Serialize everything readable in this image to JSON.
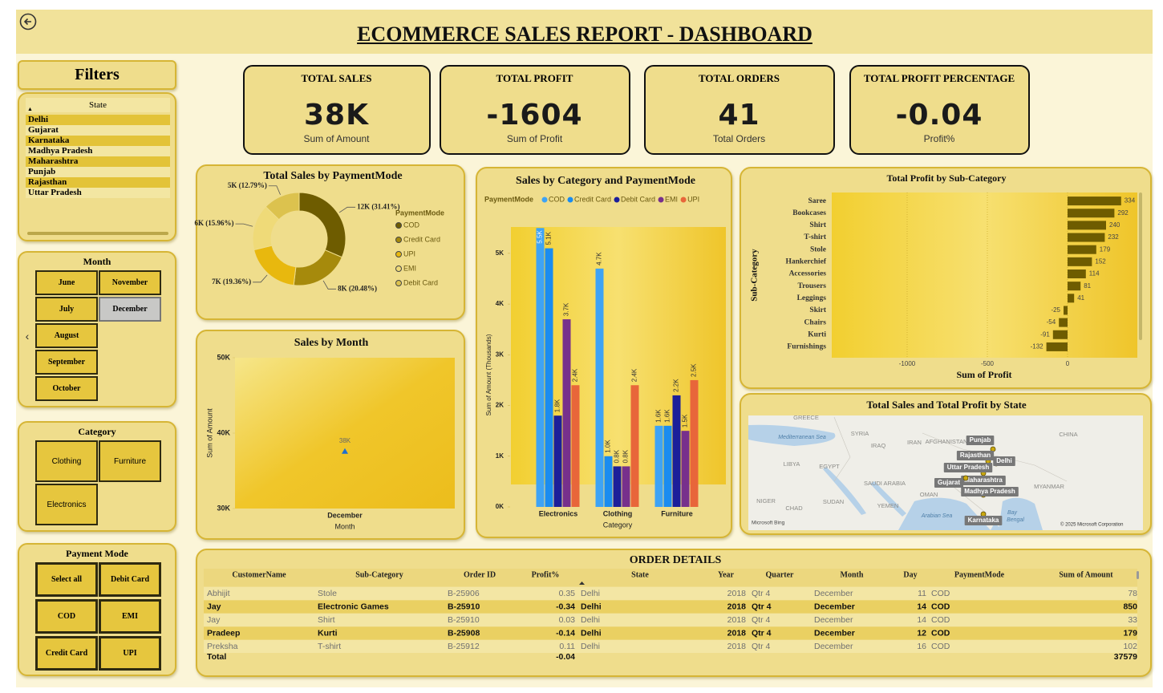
{
  "title": "ECOMMERCE SALES REPORT - DASHBOARD",
  "filters": {
    "title": "Filters",
    "state": {
      "label": "State",
      "items": [
        "Delhi",
        "Gujarat",
        "Karnataka",
        "Madhya Pradesh",
        "Maharashtra",
        "Punjab",
        "Rajasthan",
        "Uttar Pradesh"
      ]
    },
    "month": {
      "label": "Month",
      "items": [
        {
          "label": "June"
        },
        {
          "label": "November"
        },
        {
          "label": "July"
        },
        {
          "label": "December",
          "selected": true
        },
        {
          "label": "August"
        },
        {
          "label": "September"
        },
        {
          "label": "October"
        }
      ]
    },
    "category": {
      "label": "Category",
      "items": [
        "Clothing",
        "Furniture",
        "Electronics"
      ]
    },
    "payment_mode": {
      "label": "Payment Mode",
      "items": [
        "Select all",
        "Debit Card",
        "COD",
        "EMI",
        "Credit Card",
        "UPI"
      ]
    }
  },
  "kpis": [
    {
      "title": "TOTAL SALES",
      "value": "38K",
      "caption": "Sum of Amount"
    },
    {
      "title": "TOTAL PROFIT",
      "value": "-1604",
      "caption": "Sum of Profit"
    },
    {
      "title": "TOTAL ORDERS",
      "value": "41",
      "caption": "Total Orders"
    },
    {
      "title": "TOTAL PROFIT PERCENTAGE",
      "value": "-0.04",
      "caption": "Profit%"
    }
  ],
  "chart_data": [
    {
      "type": "donut",
      "title": "Total Sales by PaymentMode",
      "legend_title": "PaymentMode",
      "categories": [
        "COD",
        "Credit Card",
        "UPI",
        "EMI",
        "Debit Card"
      ],
      "values": [
        31.41,
        20.48,
        19.36,
        15.96,
        12.79
      ],
      "value_labels": [
        "12K (31.41%)",
        "8K (20.48%)",
        "7K (19.36%)",
        "6K (15.96%)",
        "5K (12.79%)"
      ],
      "colors": [
        "#6e5c00",
        "#a68a0c",
        "#e8b80e",
        "#efda78",
        "#dcc24e"
      ]
    },
    {
      "type": "line",
      "title": "Sales by Month",
      "x_label": "Month",
      "y_label": "Sum of Amount",
      "categories": [
        "December"
      ],
      "values": [
        37579
      ],
      "value_labels": [
        "38K"
      ],
      "color": "#1f6fd0",
      "ylim": [
        30000,
        50000
      ],
      "yticks": [
        {
          "value": 30000,
          "label": "30K"
        },
        {
          "value": 40000,
          "label": "40K"
        },
        {
          "value": 50000,
          "label": "50K"
        }
      ]
    },
    {
      "type": "bar",
      "title": "Sales by Category and PaymentMode",
      "legend_title": "PaymentMode",
      "x_label": "Category",
      "y_label": "Sum of Amount (Thousands)",
      "categories": [
        "Electronics",
        "Clothing",
        "Furniture"
      ],
      "series": [
        {
          "name": "COD",
          "color": "#3ea3f5",
          "values": [
            5500,
            4700,
            1600
          ],
          "value_labels": [
            "5.5K",
            "4.7K",
            "1.6K"
          ]
        },
        {
          "name": "Credit Card",
          "color": "#1a8cf0",
          "values": [
            5100,
            1000,
            1600
          ],
          "value_labels": [
            "5.1K",
            "1.0K",
            "1.6K"
          ]
        },
        {
          "name": "Debit Card",
          "color": "#1c1f9a",
          "values": [
            1800,
            800,
            2200
          ],
          "value_labels": [
            "1.8K",
            "0.8K",
            "2.2K"
          ]
        },
        {
          "name": "EMI",
          "color": "#77308c",
          "values": [
            3700,
            800,
            1500
          ],
          "value_labels": [
            "3.7K",
            "0.8K",
            "1.5K"
          ]
        },
        {
          "name": "UPI",
          "color": "#e8663a",
          "values": [
            2400,
            2400,
            2500
          ],
          "value_labels": [
            "2.4K",
            "2.4K",
            "2.5K"
          ]
        }
      ],
      "ylim": [
        0,
        5520
      ],
      "yticks": [
        {
          "value": 0,
          "label": "0K"
        },
        {
          "value": 1000,
          "label": "1K"
        },
        {
          "value": 2000,
          "label": "2K"
        },
        {
          "value": 3000,
          "label": "3K"
        },
        {
          "value": 4000,
          "label": "4K"
        },
        {
          "value": 5000,
          "label": "5K"
        }
      ]
    },
    {
      "type": "barh",
      "title": "Total Profit by Sub-Category",
      "x_label": "Sum of Profit",
      "y_label": "Sub-Category",
      "categories": [
        "Saree",
        "Bookcases",
        "Shirt",
        "T-shirt",
        "Stole",
        "Hankerchief",
        "Accessories",
        "Trousers",
        "Leggings",
        "Skirt",
        "Chairs",
        "Kurti",
        "Furnishings"
      ],
      "values": [
        334,
        292,
        240,
        232,
        179,
        152,
        114,
        81,
        41,
        -25,
        -54,
        -91,
        -132
      ],
      "color": "#6e5c00",
      "grid": true,
      "xlim": [
        -1470,
        435
      ],
      "xticks": [
        -1000,
        -500,
        0
      ]
    }
  ],
  "map": {
    "title": "Total Sales and Total Profit by State",
    "places": [
      "Punjab",
      "Rajasthan",
      "Delhi",
      "Uttar Pradesh",
      "Maharashtra",
      "Gujarat",
      "Madhya Pradesh",
      "Karnataka"
    ],
    "geo_labels": [
      "Mediterranean Sea",
      "GREECE",
      "SYRIA",
      "IRAQ",
      "IRAN",
      "AFGHANISTAN",
      "CHINA",
      "LIBYA",
      "EGYPT",
      "SAUDI ARABIA",
      "OMAN",
      "NIGER",
      "CHAD",
      "SUDAN",
      "YEMEN",
      "Arabian Sea",
      "MYANMAR",
      "Bay",
      "Bengal"
    ],
    "attribution": [
      "Microsoft Bing",
      "© 2025 Microsoft Corporation"
    ]
  },
  "table": {
    "title": "ORDER DETAILS",
    "columns": [
      "CustomerName",
      "Sub-Category",
      "Order ID",
      "Profit%",
      "State",
      "Year",
      "Quarter",
      "Month",
      "Day",
      "PaymentMode",
      "Sum of Amount"
    ],
    "rows": [
      [
        "Abhijit",
        "Stole",
        "B-25906",
        0.35,
        "Delhi",
        2018,
        "Qtr 4",
        "December",
        11,
        "COD",
        78
      ],
      [
        "Jay",
        "Electronic Games",
        "B-25910",
        -0.34,
        "Delhi",
        2018,
        "Qtr 4",
        "December",
        14,
        "COD",
        850
      ],
      [
        "Jay",
        "Shirt",
        "B-25910",
        0.03,
        "Delhi",
        2018,
        "Qtr 4",
        "December",
        14,
        "COD",
        33
      ],
      [
        "Pradeep",
        "Kurti",
        "B-25908",
        -0.14,
        "Delhi",
        2018,
        "Qtr 4",
        "December",
        12,
        "COD",
        179
      ],
      [
        "Preksha",
        "T-shirt",
        "B-25912",
        0.11,
        "Delhi",
        2018,
        "Qtr 4",
        "December",
        16,
        "COD",
        102
      ]
    ],
    "total": {
      "label": "Total",
      "profit": -0.04,
      "amount": 37579
    }
  }
}
